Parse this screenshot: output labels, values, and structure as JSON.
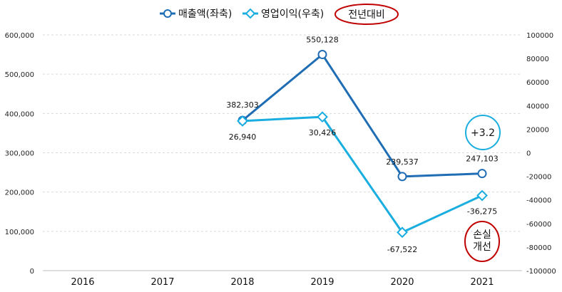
{
  "chart_data": {
    "type": "line",
    "categories": [
      "2016",
      "2017",
      "2018",
      "2019",
      "2020",
      "2021"
    ],
    "series": [
      {
        "name": "매출액(좌축)",
        "axis": "left",
        "color": "#1F6DB4",
        "marker": "circle",
        "values": [
          null,
          null,
          382303,
          550128,
          239537,
          247103
        ],
        "labels": [
          "",
          "",
          "382,303",
          "550,128",
          "239,537",
          "247,103"
        ]
      },
      {
        "name": "영업이익(우축)",
        "axis": "right",
        "color": "#1AAEE0",
        "marker": "diamond",
        "values": [
          null,
          null,
          26940,
          30426,
          -67522,
          -36275
        ],
        "labels": [
          "",
          "",
          "26,940",
          "30,426",
          "-67,522",
          "-36,275"
        ]
      }
    ],
    "y_left": {
      "ylim": [
        0,
        600000
      ],
      "ticks": [
        "0",
        "100,000",
        "200,000",
        "300,000",
        "400,000",
        "500,000",
        "600,000"
      ]
    },
    "y_right": {
      "ylim": [
        -100000,
        100000
      ],
      "ticks": [
        "-100000",
        "-80000",
        "-60000",
        "-40000",
        "-20000",
        "0",
        "20000",
        "40000",
        "60000",
        "80000",
        "100000"
      ]
    },
    "grid": true,
    "legend": {
      "position": "top",
      "extra_label": "전년대비",
      "extra_color": "#C00000"
    },
    "annotations": [
      {
        "text": "+3.2",
        "color": "#1AAEE0",
        "category": "2021"
      },
      {
        "text": "손실\n개선",
        "color": "#C00000",
        "category": "2021"
      }
    ]
  }
}
